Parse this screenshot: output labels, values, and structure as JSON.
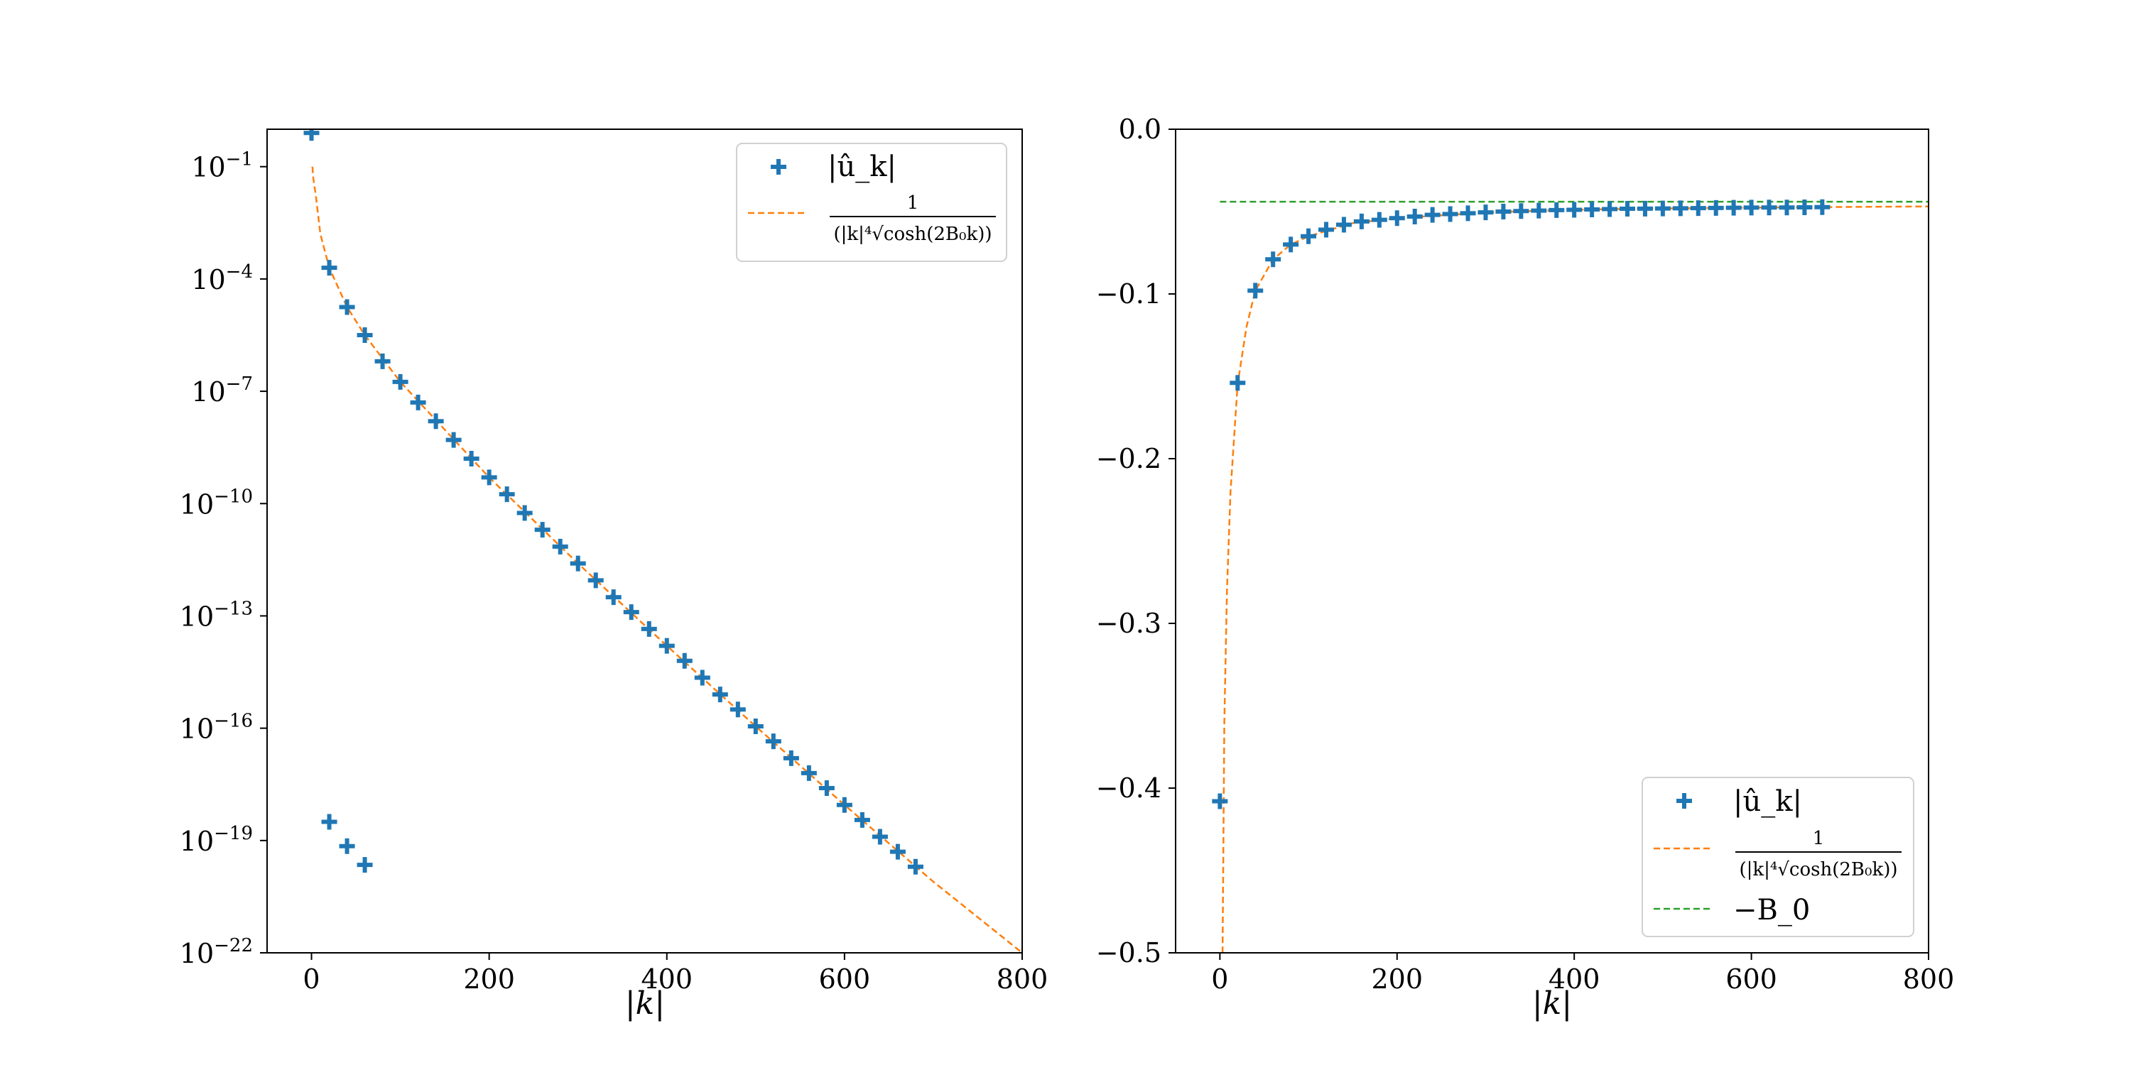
{
  "chart_data": [
    {
      "type": "scatter",
      "yscale": "log",
      "xlabel": "|k|",
      "ylabel": "",
      "xlim": [
        -50,
        800
      ],
      "ylim_exponent": [
        -22,
        0
      ],
      "xticks": [
        0,
        200,
        400,
        600,
        800
      ],
      "yticks_exponent": [
        -22,
        -19,
        -16,
        -13,
        -10,
        -7,
        -4,
        -1
      ],
      "ytick_base": "10",
      "legend_position": "upper right",
      "series": [
        {
          "name": "|û_k|",
          "marker": "plus",
          "color": "#1f77b4",
          "points_log10": [
            [
              0,
              -0.1
            ],
            [
              20,
              -3.7
            ],
            [
              40,
              -4.75
            ],
            [
              60,
              -5.5
            ],
            [
              80,
              -6.2
            ],
            [
              100,
              -6.75
            ],
            [
              120,
              -7.3
            ],
            [
              140,
              -7.8
            ],
            [
              160,
              -8.3
            ],
            [
              180,
              -8.8
            ],
            [
              200,
              -9.3
            ],
            [
              220,
              -9.75
            ],
            [
              240,
              -10.25
            ],
            [
              260,
              -10.7
            ],
            [
              280,
              -11.15
            ],
            [
              300,
              -11.6
            ],
            [
              320,
              -12.05
            ],
            [
              340,
              -12.5
            ],
            [
              360,
              -12.9
            ],
            [
              380,
              -13.35
            ],
            [
              400,
              -13.8
            ],
            [
              420,
              -14.2
            ],
            [
              440,
              -14.65
            ],
            [
              460,
              -15.1
            ],
            [
              480,
              -15.5
            ],
            [
              500,
              -15.95
            ],
            [
              520,
              -16.35
            ],
            [
              540,
              -16.8
            ],
            [
              560,
              -17.2
            ],
            [
              580,
              -17.6
            ],
            [
              600,
              -18.05
            ],
            [
              620,
              -18.45
            ],
            [
              640,
              -18.9
            ],
            [
              660,
              -19.3
            ],
            [
              680,
              -19.7
            ],
            [
              20,
              -18.5
            ],
            [
              40,
              -19.15
            ],
            [
              60,
              -19.65
            ]
          ]
        },
        {
          "name": "1 / (|k|^4 sqrt(cosh(2B_0 k)))",
          "line_style": "dashed",
          "color": "#ff7f0e",
          "curve_log10": [
            [
              1,
              -1
            ],
            [
              2,
              -1.3
            ],
            [
              5,
              -1.8
            ],
            [
              10,
              -2.8
            ],
            [
              20,
              -3.7
            ],
            [
              40,
              -4.75
            ],
            [
              60,
              -5.5
            ],
            [
              100,
              -6.75
            ],
            [
              200,
              -9.3
            ],
            [
              300,
              -11.6
            ],
            [
              400,
              -13.8
            ],
            [
              500,
              -15.95
            ],
            [
              600,
              -18.05
            ],
            [
              700,
              -20.1
            ],
            [
              800,
              -22
            ]
          ]
        }
      ]
    },
    {
      "type": "scatter",
      "xlabel": "|k|",
      "ylabel": "",
      "xlim": [
        -50,
        800
      ],
      "ylim": [
        -0.5,
        0.0
      ],
      "xticks": [
        0,
        200,
        400,
        600,
        800
      ],
      "yticks": [
        -0.5,
        -0.4,
        -0.3,
        -0.2,
        -0.1,
        0.0
      ],
      "ytick_labels": [
        "−0.5",
        "−0.4",
        "−0.3",
        "−0.2",
        "−0.1",
        "0.0"
      ],
      "legend_position": "lower right",
      "series": [
        {
          "name": "|û_k|",
          "marker": "plus",
          "color": "#1f77b4",
          "points": [
            [
              0,
              -0.408
            ],
            [
              20,
              -0.154
            ],
            [
              40,
              -0.098
            ],
            [
              60,
              -0.079
            ],
            [
              80,
              -0.07
            ],
            [
              100,
              -0.065
            ],
            [
              120,
              -0.061
            ],
            [
              140,
              -0.058
            ],
            [
              160,
              -0.056
            ],
            [
              180,
              -0.055
            ],
            [
              200,
              -0.054
            ],
            [
              220,
              -0.053
            ],
            [
              240,
              -0.052
            ],
            [
              260,
              -0.0515
            ],
            [
              280,
              -0.051
            ],
            [
              300,
              -0.0505
            ],
            [
              320,
              -0.05
            ],
            [
              340,
              -0.0497
            ],
            [
              360,
              -0.0494
            ],
            [
              380,
              -0.0491
            ],
            [
              400,
              -0.0489
            ],
            [
              420,
              -0.0487
            ],
            [
              440,
              -0.0485
            ],
            [
              460,
              -0.0483
            ],
            [
              480,
              -0.0482
            ],
            [
              500,
              -0.0481
            ],
            [
              520,
              -0.048
            ],
            [
              540,
              -0.0479
            ],
            [
              560,
              -0.0478
            ],
            [
              580,
              -0.0477
            ],
            [
              600,
              -0.0476
            ],
            [
              620,
              -0.0475
            ],
            [
              640,
              -0.0475
            ],
            [
              660,
              -0.0474
            ],
            [
              680,
              -0.0473
            ]
          ]
        },
        {
          "name": "1 / (|k|^4 sqrt(cosh(2B_0 k)))",
          "line_style": "dashed",
          "color": "#ff7f0e",
          "curve": [
            [
              3,
              -0.5
            ],
            [
              5,
              -0.36
            ],
            [
              8,
              -0.28
            ],
            [
              12,
              -0.22
            ],
            [
              20,
              -0.155
            ],
            [
              30,
              -0.12
            ],
            [
              40,
              -0.098
            ],
            [
              60,
              -0.079
            ],
            [
              80,
              -0.07
            ],
            [
              100,
              -0.065
            ],
            [
              150,
              -0.057
            ],
            [
              200,
              -0.054
            ],
            [
              300,
              -0.0505
            ],
            [
              400,
              -0.0489
            ],
            [
              500,
              -0.0481
            ],
            [
              600,
              -0.0476
            ],
            [
              700,
              -0.0472
            ],
            [
              800,
              -0.0469
            ]
          ]
        },
        {
          "name": "−B_0",
          "line_style": "dashed",
          "color": "#2ca02c",
          "y": -0.044,
          "x_range": [
            0,
            800
          ]
        }
      ]
    }
  ]
}
